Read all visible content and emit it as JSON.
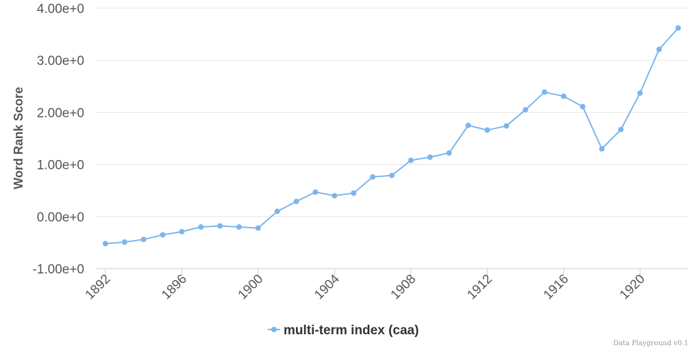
{
  "chart_data": {
    "type": "line",
    "xlabel": "",
    "ylabel": "Word Rank Score",
    "xlim": [
      1891.5,
      1922.5
    ],
    "ylim": [
      -1.0,
      4.0
    ],
    "y_ticks": [
      -1,
      0,
      1,
      2,
      3,
      4
    ],
    "y_tick_labels": [
      "-1.00e+0",
      "0.00e+0",
      "1.00e+0",
      "2.00e+0",
      "3.00e+0",
      "4.00e+0"
    ],
    "x_ticks": [
      1892,
      1896,
      1900,
      1904,
      1908,
      1912,
      1916,
      1920
    ],
    "x_tick_labels": [
      "1892",
      "1896",
      "1900",
      "1904",
      "1908",
      "1912",
      "1916",
      "1920"
    ],
    "grid": "horizontal",
    "legend_position": "bottom-center",
    "series": [
      {
        "name": "multi-term index (caa)",
        "color": "#7cb5ec",
        "x": [
          1892,
          1893,
          1894,
          1895,
          1896,
          1897,
          1898,
          1899,
          1900,
          1901,
          1902,
          1903,
          1904,
          1905,
          1906,
          1907,
          1908,
          1909,
          1910,
          1911,
          1912,
          1913,
          1914,
          1915,
          1916,
          1917,
          1918,
          1919,
          1920,
          1921,
          1922
        ],
        "values": [
          -0.52,
          -0.49,
          -0.44,
          -0.35,
          -0.29,
          -0.2,
          -0.18,
          -0.2,
          -0.22,
          0.1,
          0.29,
          0.47,
          0.4,
          0.45,
          0.76,
          0.79,
          1.08,
          1.14,
          1.22,
          1.75,
          1.66,
          1.74,
          2.05,
          2.39,
          2.31,
          2.11,
          1.3,
          1.67,
          2.37,
          3.21,
          3.62
        ]
      }
    ]
  },
  "watermark": "Data Playground v0.1"
}
